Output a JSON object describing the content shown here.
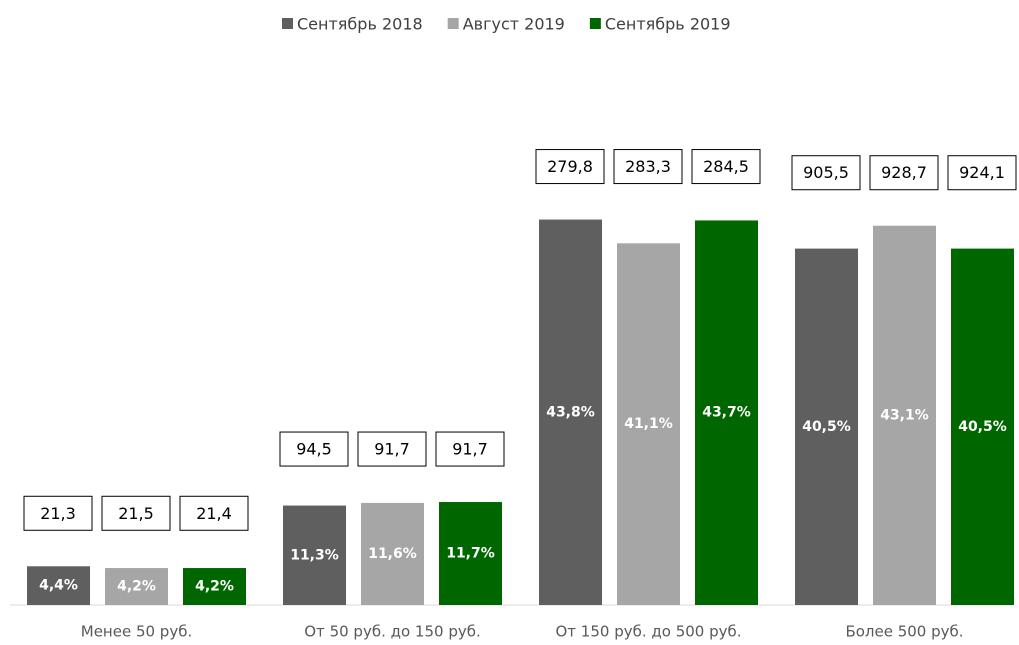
{
  "chart_data": {
    "type": "bar",
    "categories": [
      "Менее 50 руб.",
      "От 50 руб. до 150 руб.",
      "От 150 руб. до 500 руб.",
      "Более 500 руб."
    ],
    "ylim": [
      0,
      45
    ],
    "legend": "top",
    "series": [
      {
        "name": "Сентябрь 2018",
        "color": "#5f5f5f",
        "values": [
          4.4,
          11.3,
          43.8,
          40.5
        ],
        "value_labels": [
          "4,4%",
          "11,3%",
          "43,8%",
          "40,5%"
        ],
        "amounts": [
          21.3,
          94.5,
          279.8,
          905.5
        ],
        "amount_labels": [
          "21,3",
          "94,5",
          "279,8",
          "905,5"
        ]
      },
      {
        "name": "Август 2019",
        "color": "#a6a6a6",
        "values": [
          4.2,
          11.6,
          41.1,
          43.1
        ],
        "value_labels": [
          "4,2%",
          "11,6%",
          "41,1%",
          "43,1%"
        ],
        "amounts": [
          21.5,
          91.7,
          283.3,
          928.7
        ],
        "amount_labels": [
          "21,5",
          "91,7",
          "283,3",
          "928,7"
        ]
      },
      {
        "name": "Сентябрь 2019",
        "color": "#006600",
        "values": [
          4.2,
          11.7,
          43.7,
          40.5
        ],
        "value_labels": [
          "4,2%",
          "11,7%",
          "43,7%",
          "40,5%"
        ],
        "amounts": [
          21.4,
          91.7,
          284.5,
          924.1
        ],
        "amount_labels": [
          "21,4",
          "91,7",
          "284,5",
          "924,1"
        ]
      }
    ]
  }
}
